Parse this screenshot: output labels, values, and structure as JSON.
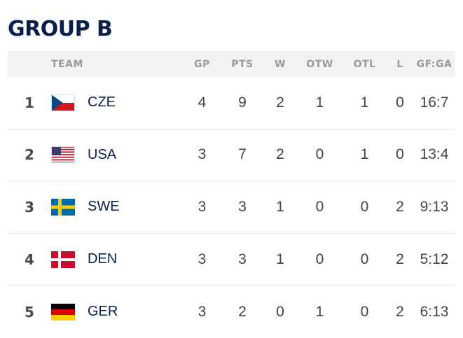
{
  "group_title": "GROUP B",
  "columns": {
    "team": "TEAM",
    "gp": "GP",
    "pts": "PTS",
    "w": "W",
    "otw": "OTW",
    "otl": "OTL",
    "l": "L",
    "gfga": "GF:GA"
  },
  "rows": [
    {
      "rank": "1",
      "team": "CZE",
      "flag_icon": "czech-flag-icon",
      "gp": "4",
      "pts": "9",
      "w": "2",
      "otw": "1",
      "otl": "1",
      "l": "0",
      "gfga": "16:7"
    },
    {
      "rank": "2",
      "team": "USA",
      "flag_icon": "usa-flag-icon",
      "gp": "3",
      "pts": "7",
      "w": "2",
      "otw": "0",
      "otl": "1",
      "l": "0",
      "gfga": "13:4"
    },
    {
      "rank": "3",
      "team": "SWE",
      "flag_icon": "sweden-flag-icon",
      "gp": "3",
      "pts": "3",
      "w": "1",
      "otw": "0",
      "otl": "0",
      "l": "2",
      "gfga": "9:13"
    },
    {
      "rank": "4",
      "team": "DEN",
      "flag_icon": "denmark-flag-icon",
      "gp": "3",
      "pts": "3",
      "w": "1",
      "otw": "0",
      "otl": "0",
      "l": "2",
      "gfga": "5:12"
    },
    {
      "rank": "5",
      "team": "GER",
      "flag_icon": "germany-flag-icon",
      "gp": "3",
      "pts": "2",
      "w": "0",
      "otw": "1",
      "otl": "0",
      "l": "2",
      "gfga": "6:13"
    }
  ],
  "colors": {
    "title": "#0b1f4d",
    "header_bg": "#f2f2f2",
    "header_text": "#9a9a9a",
    "team_text": "#0b1f4d"
  }
}
